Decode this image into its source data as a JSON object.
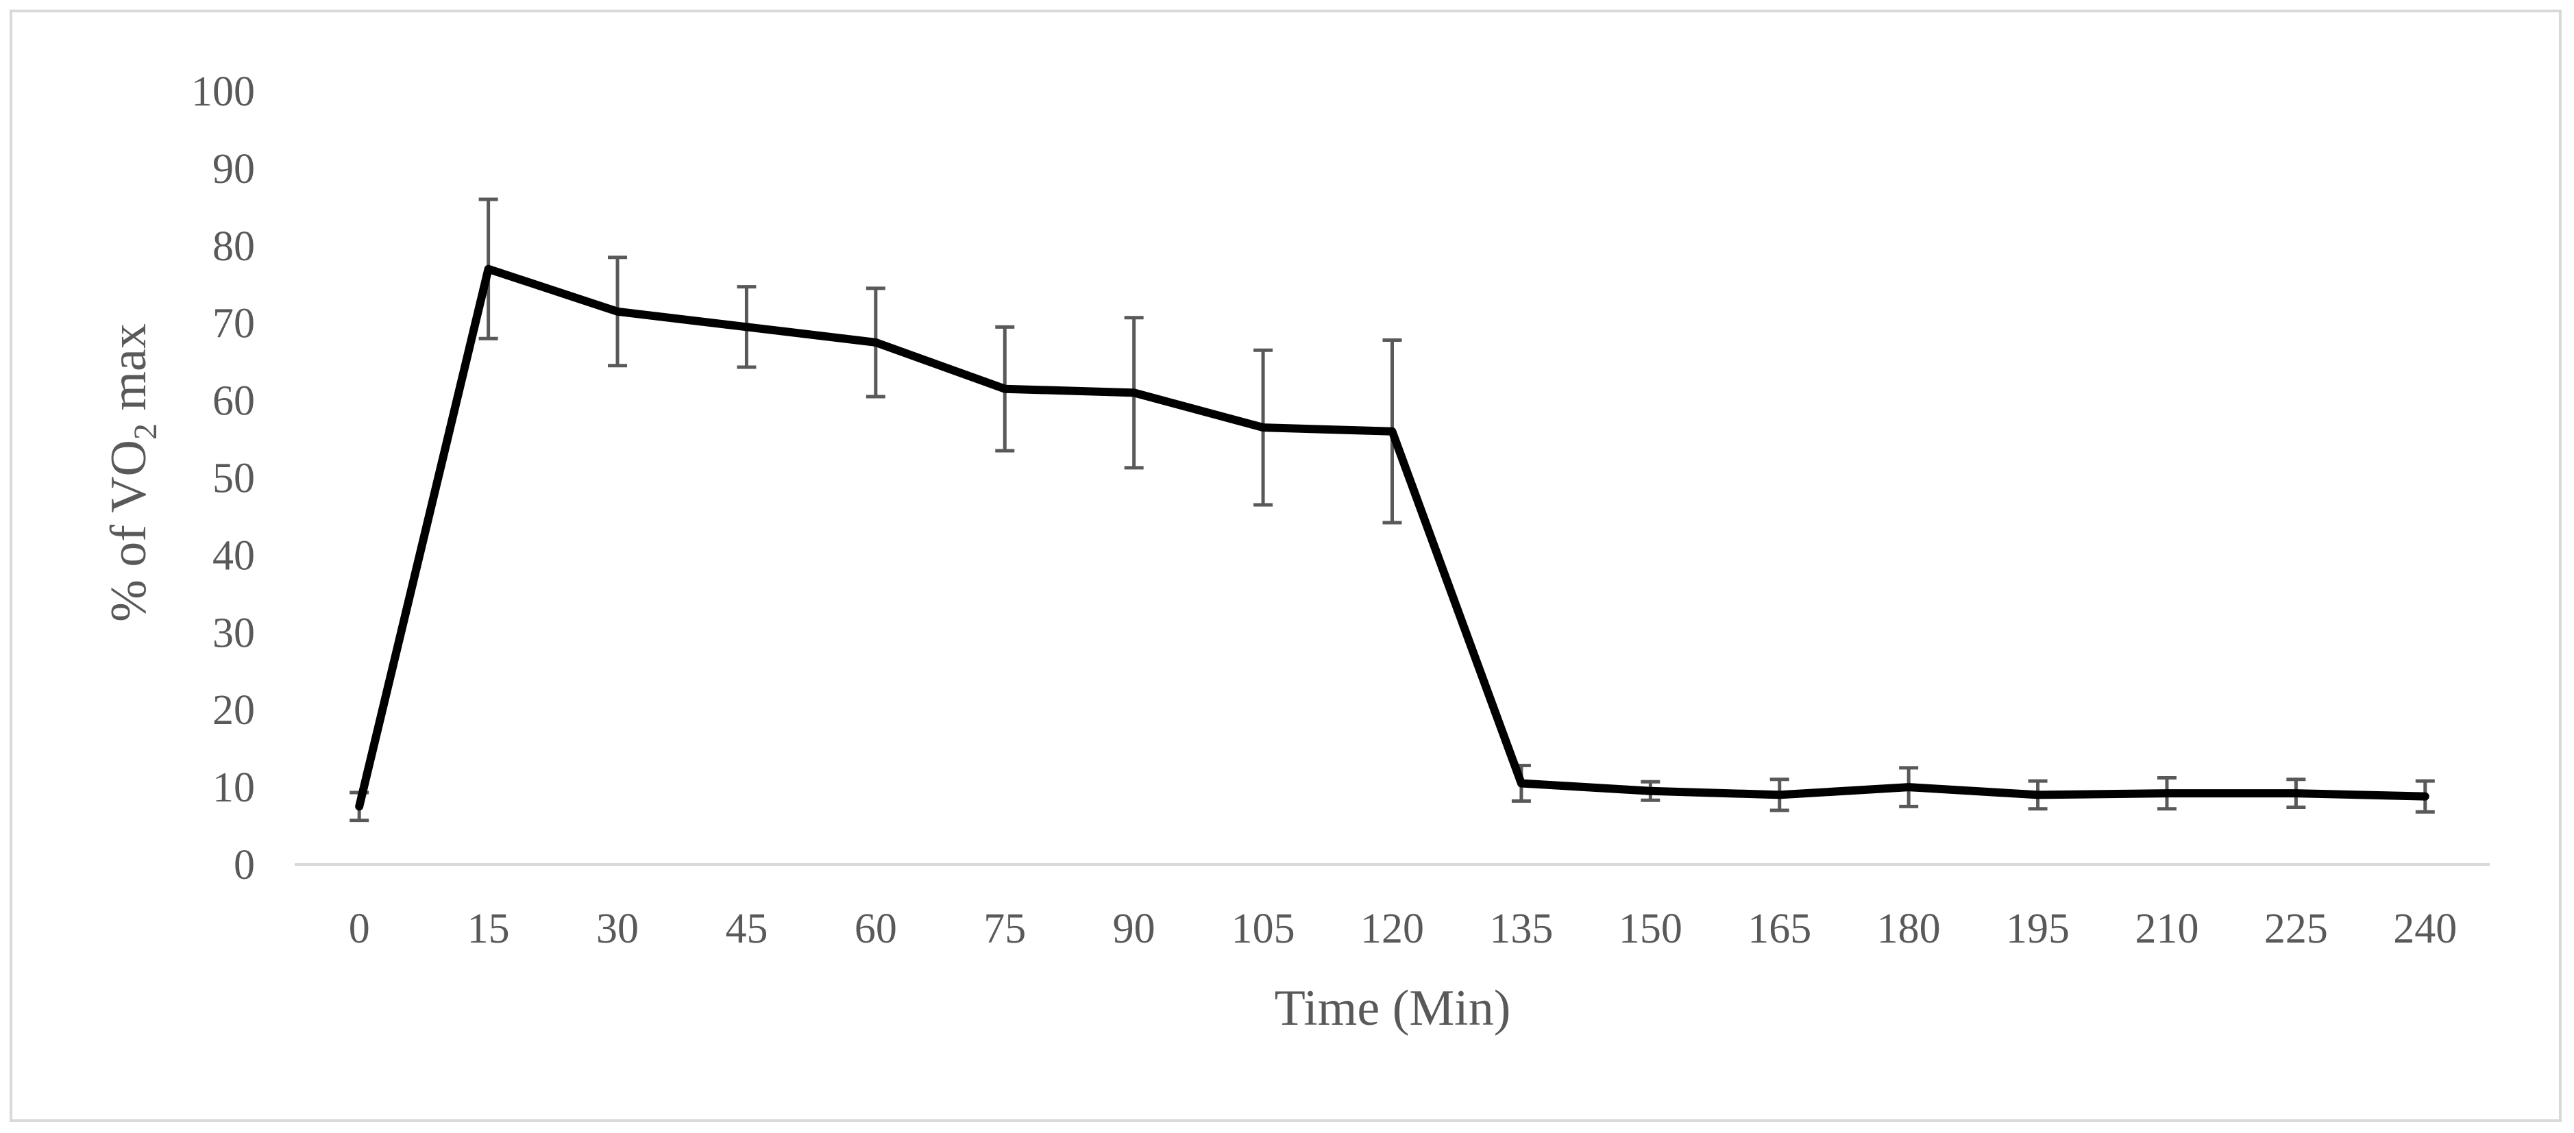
{
  "chart_data": {
    "type": "line",
    "title": "",
    "xlabel": "Time (Min)",
    "ylabel": {
      "prefix": "%  of  VO",
      "subscript": "2",
      "suffix": " max"
    },
    "ylim": [
      0,
      100
    ],
    "yticks": [
      0,
      10,
      20,
      30,
      40,
      50,
      60,
      70,
      80,
      90,
      100
    ],
    "categories": [
      "0",
      "15",
      "30",
      "45",
      "60",
      "75",
      "90",
      "105",
      "120",
      "135",
      "150",
      "165",
      "180",
      "195",
      "210",
      "225",
      "240"
    ],
    "series": [
      {
        "name": "% of VO2 max",
        "values": [
          7.5,
          77,
          71.5,
          69.5,
          67.5,
          61.5,
          61,
          56.5,
          56,
          10.5,
          9.5,
          9,
          10,
          9,
          9.2,
          9.2,
          8.8
        ],
        "error": [
          1.8,
          9,
          7,
          5.2,
          7,
          8,
          9.7,
          10,
          11.8,
          2.3,
          1.2,
          2,
          2.5,
          1.8,
          2,
          1.8,
          2
        ]
      }
    ],
    "colors": {
      "line": "#000000",
      "error_bar": "#595959",
      "axis": "#d9d9d9",
      "text": "#595959"
    },
    "grid": false,
    "legend": "none"
  }
}
